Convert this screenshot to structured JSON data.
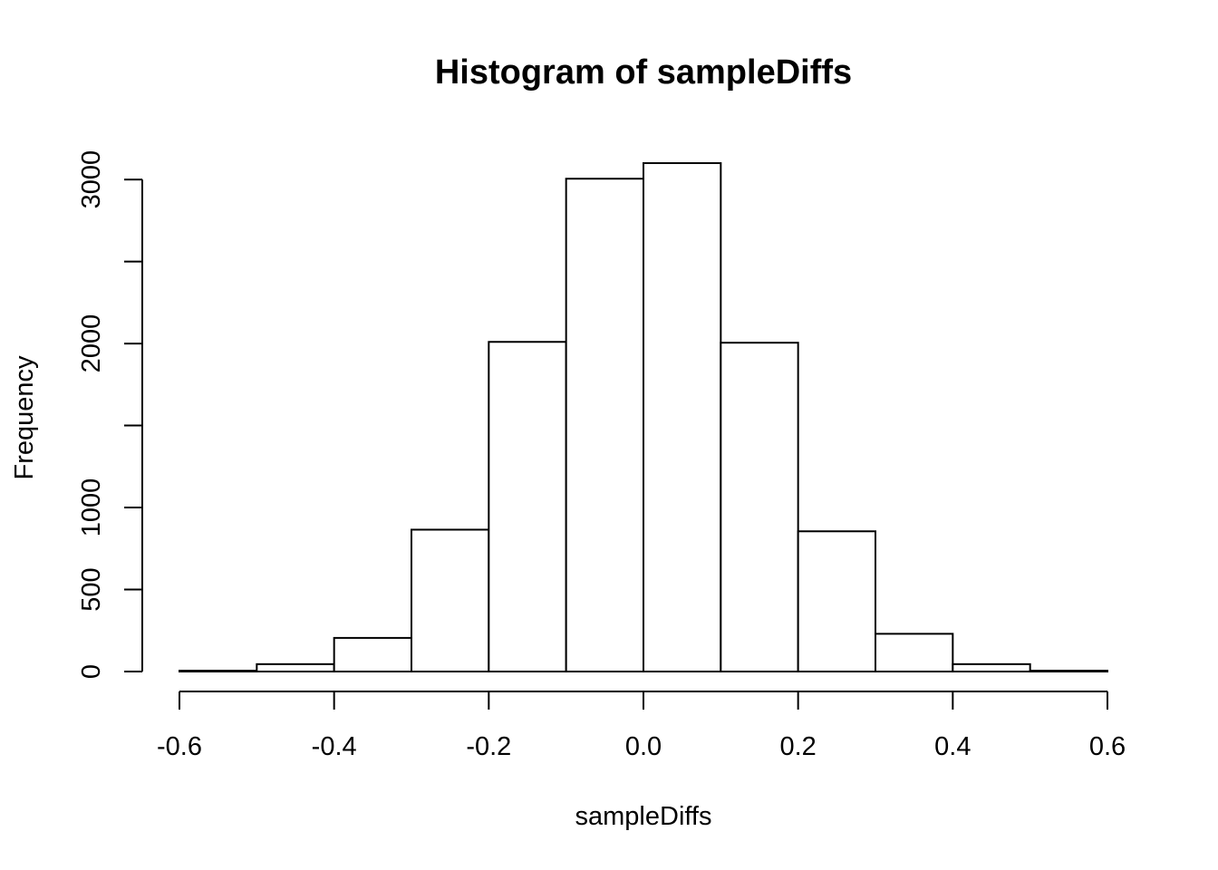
{
  "chart_data": {
    "type": "bar",
    "title": "Histogram of sampleDiffs",
    "xlabel": "sampleDiffs",
    "ylabel": "Frequency",
    "bin_edges": [
      -0.6,
      -0.5,
      -0.4,
      -0.3,
      -0.2,
      -0.1,
      0.0,
      0.1,
      0.2,
      0.3,
      0.4,
      0.5,
      0.6
    ],
    "values": [
      5,
      45,
      205,
      865,
      2010,
      3005,
      3100,
      2005,
      855,
      230,
      45,
      5
    ],
    "xlim": [
      -0.6,
      0.6
    ],
    "ylim": [
      0,
      3100
    ],
    "x_ticks": [
      {
        "value": -0.6,
        "label": "-0.6"
      },
      {
        "value": -0.4,
        "label": "-0.4"
      },
      {
        "value": -0.2,
        "label": "-0.2"
      },
      {
        "value": 0.0,
        "label": "0.0"
      },
      {
        "value": 0.2,
        "label": "0.2"
      },
      {
        "value": 0.4,
        "label": "0.4"
      },
      {
        "value": 0.6,
        "label": "0.6"
      }
    ],
    "y_ticks": [
      {
        "value": 0,
        "label": "0"
      },
      {
        "value": 500,
        "label": "500"
      },
      {
        "value": 1000,
        "label": "1000"
      },
      {
        "value": 1500,
        "label": ""
      },
      {
        "value": 2000,
        "label": "2000"
      },
      {
        "value": 2500,
        "label": ""
      },
      {
        "value": 3000,
        "label": "3000"
      }
    ],
    "grid": false,
    "colors": {
      "bar_fill": "#ffffff",
      "bar_stroke": "#000000",
      "axis": "#000000",
      "text": "#000000"
    }
  }
}
